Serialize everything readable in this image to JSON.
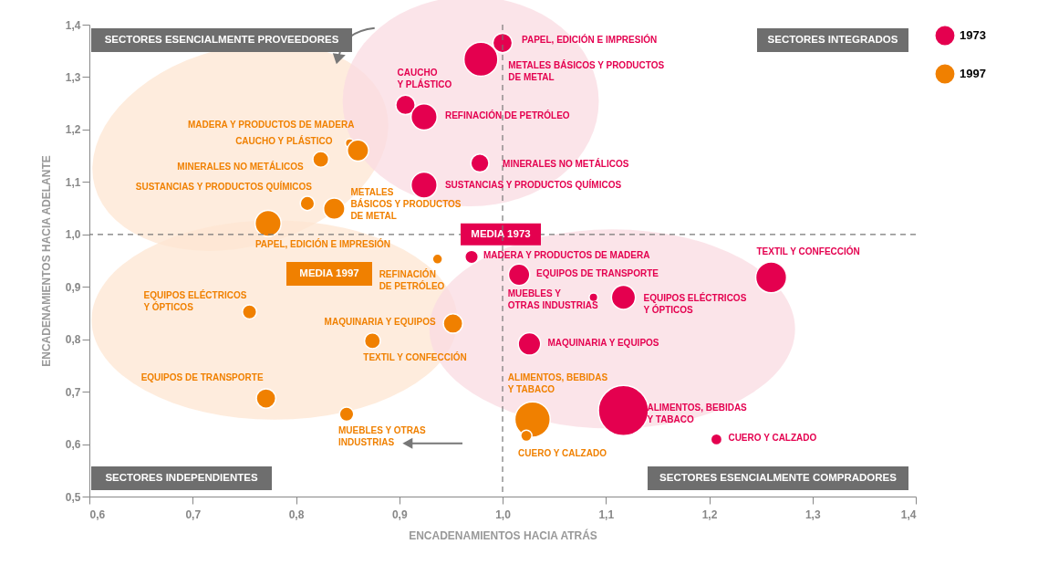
{
  "chart_data": {
    "type": "bubble",
    "xlabel": "ENCADENAMIENTOS HACIA ATRÁS",
    "ylabel": "ENCADENAMIENTOS HACIA ADELANTE",
    "legend": "right",
    "xlim": [
      0.6,
      1.4
    ],
    "ylim": [
      0.5,
      1.4
    ],
    "xticks": [
      {
        "value": 0.6,
        "label": "0,6"
      },
      {
        "value": 0.7,
        "label": "0,7"
      },
      {
        "value": 0.8,
        "label": "0,8"
      },
      {
        "value": 0.9,
        "label": "0,9"
      },
      {
        "value": 1.0,
        "label": "1,0"
      },
      {
        "value": 1.1,
        "label": "1,1"
      },
      {
        "value": 1.2,
        "label": "1,2"
      },
      {
        "value": 1.3,
        "label": "1,3"
      },
      {
        "value": 1.4,
        "label": "1,4"
      }
    ],
    "yticks": [
      {
        "value": 0.5,
        "label": "0,5"
      },
      {
        "value": 0.6,
        "label": "0,6"
      },
      {
        "value": 0.7,
        "label": "0,7"
      },
      {
        "value": 0.8,
        "label": "0,8"
      },
      {
        "value": 0.9,
        "label": "0,9"
      },
      {
        "value": 1.0,
        "label": "1,0"
      },
      {
        "value": 1.1,
        "label": "1,1"
      },
      {
        "value": 1.2,
        "label": "1,2"
      },
      {
        "value": 1.3,
        "label": "1,3"
      },
      {
        "value": 1.4,
        "label": "1,4"
      }
    ],
    "series": [
      {
        "name": "1973",
        "color": "#e4004f",
        "x": [
          1.0,
          0.979,
          0.906,
          0.924,
          0.978,
          0.924,
          0.97,
          1.016,
          1.088,
          1.117,
          1.26,
          1.026,
          1.117,
          1.207
        ],
        "values": [
          1.365,
          1.334,
          1.247,
          1.224,
          1.136,
          1.094,
          0.957,
          0.923,
          0.88,
          0.88,
          0.918,
          0.791,
          0.664,
          0.609
        ],
        "sizes": [
          0.15,
          0.46,
          0.15,
          0.27,
          0.13,
          0.27,
          0.07,
          0.18,
          0.03,
          0.23,
          0.38,
          0.2,
          1,
          0.05
        ]
      },
      {
        "name": "1997",
        "color": "#f08000",
        "x": [
          0.852,
          0.86,
          0.824,
          0.811,
          0.837,
          0.773,
          0.937,
          0.755,
          0.952,
          0.874,
          0.771,
          0.849,
          1.029,
          1.023
        ],
        "values": [
          1.174,
          1.16,
          1.143,
          1.059,
          1.049,
          1.021,
          0.953,
          0.852,
          0.83,
          0.797,
          0.687,
          0.657,
          0.647,
          0.616
        ],
        "sizes": [
          0.03,
          0.18,
          0.1,
          0.08,
          0.18,
          0.27,
          0.04,
          0.08,
          0.15,
          0.1,
          0.15,
          0.08,
          0.5,
          0.05
        ]
      }
    ],
    "ref_lines": [
      {
        "axis": "y",
        "value": 1.0,
        "label": "MEDIA 1973",
        "line_style": "dashed",
        "color": "#777777"
      },
      {
        "axis": "x",
        "value": 1.0,
        "line_style": "dashed",
        "color": "#777777"
      }
    ],
    "annotations": [
      {
        "text": "PAPEL, EDICIÓN E IMPRESIÓN",
        "x": 1.0,
        "y": 1.365
      },
      {
        "text": "METALES BÁSICOS Y PRODUCTOS\nDE METAL",
        "x": 0.979,
        "y": 1.334
      },
      {
        "text": "CAUCHO\nY PLÁSTICO",
        "x": 0.906,
        "y": 1.247
      },
      {
        "text": "REFINACIÓN DE PETRÓLEO",
        "x": 0.924,
        "y": 1.224
      },
      {
        "text": "MINERALES NO METÁLICOS",
        "x": 0.978,
        "y": 1.136
      },
      {
        "text": "SUSTANCIAS Y PRODUCTOS QUÍMICOS",
        "x": 0.924,
        "y": 1.094
      },
      {
        "text": "MADERA Y PRODUCTOS DE MADERA",
        "x": 0.97,
        "y": 0.957
      },
      {
        "text": "EQUIPOS DE TRANSPORTE",
        "x": 1.016,
        "y": 0.923
      },
      {
        "text": "MUEBLES Y\nOTRAS INDUSTRIAS",
        "x": 1.088,
        "y": 0.88
      },
      {
        "text": "EQUIPOS ELÉCTRICOS\nY ÓPTICOS",
        "x": 1.117,
        "y": 0.88
      },
      {
        "text": "TEXTIL Y CONFECCIÓN",
        "x": 1.26,
        "y": 0.918
      },
      {
        "text": "MAQUINARIA Y EQUIPOS",
        "x": 1.026,
        "y": 0.791
      },
      {
        "text": "ALIMENTOS, BEBIDAS\nY TABACO",
        "x": 1.117,
        "y": 0.664
      },
      {
        "text": "CUERO Y CALZADO",
        "x": 1.207,
        "y": 0.609
      },
      {
        "text": "MADERA Y PRODUCTOS DE MADERA",
        "x": 0.852,
        "y": 1.174
      },
      {
        "text": "CAUCHO Y PLÁSTICO",
        "x": 0.86,
        "y": 1.16
      },
      {
        "text": "MINERALES NO METÁLICOS",
        "x": 0.824,
        "y": 1.143
      },
      {
        "text": "SUSTANCIAS Y PRODUCTOS QUÍMICOS",
        "x": 0.811,
        "y": 1.059
      },
      {
        "text": "METALES\nBÁSICOS Y PRODUCTOS\nDE METAL",
        "x": 0.837,
        "y": 1.049
      },
      {
        "text": "PAPEL, EDICIÓN E IMPRESIÓN",
        "x": 0.773,
        "y": 1.021
      },
      {
        "text": "REFINACIÓN\nDE PETRÓLEO",
        "x": 0.937,
        "y": 0.953
      },
      {
        "text": "EQUIPOS ELÉCTRICOS\nY ÓPTICOS",
        "x": 0.755,
        "y": 0.852
      },
      {
        "text": "MAQUINARIA Y EQUIPOS",
        "x": 0.952,
        "y": 0.83
      },
      {
        "text": "TEXTIL Y CONFECCIÓN",
        "x": 0.874,
        "y": 0.797
      },
      {
        "text": "EQUIPOS DE TRANSPORTE",
        "x": 0.771,
        "y": 0.687
      },
      {
        "text": "MUEBLES Y OTRAS\nINDUSTRIAS",
        "x": 0.849,
        "y": 0.657
      },
      {
        "text": "ALIMENTOS, BEBIDAS\nY TABACO",
        "x": 1.029,
        "y": 0.647
      },
      {
        "text": "CUERO Y CALZADO",
        "x": 1.023,
        "y": 0.616
      },
      "SECTORES ESENCIALMENTE PROVEEDORES",
      "SECTORES INTEGRADOS",
      "SECTORES INDEPENDIENTES",
      "SECTORES ESENCIALMENTE COMPRADORES",
      "MEDIA 1997"
    ]
  }
}
